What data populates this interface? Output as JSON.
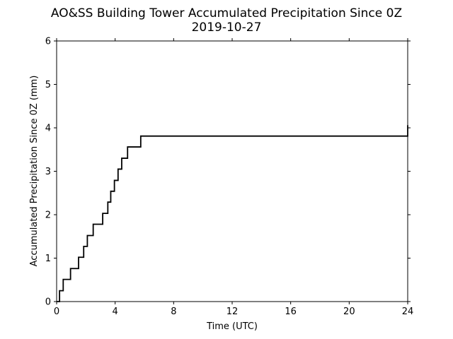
{
  "chart_data": {
    "type": "line",
    "title": "AO&SS Building Tower Accumulated Precipitation Since 0Z",
    "subtitle": "2019-10-27",
    "xlabel": "Time (UTC)",
    "ylabel": "Accumulated Precipitation Since 0Z (mm)",
    "xlim": [
      0,
      24
    ],
    "ylim": [
      0,
      6
    ],
    "xticks": [
      0,
      4,
      8,
      12,
      16,
      20,
      24
    ],
    "yticks": [
      0,
      1,
      2,
      3,
      4,
      5,
      6
    ],
    "grid": false,
    "line_color": "#000000",
    "series": [
      {
        "step": "post",
        "x": [
          0,
          0.2,
          0.45,
          0.95,
          1.5,
          1.85,
          2.1,
          2.5,
          3.15,
          3.5,
          3.7,
          3.95,
          4.2,
          4.45,
          4.85,
          5.75,
          24
        ],
        "y": [
          0,
          0.25,
          0.51,
          0.76,
          1.02,
          1.27,
          1.52,
          1.78,
          2.03,
          2.29,
          2.54,
          2.79,
          3.05,
          3.3,
          3.56,
          3.81,
          4.06
        ]
      }
    ]
  }
}
